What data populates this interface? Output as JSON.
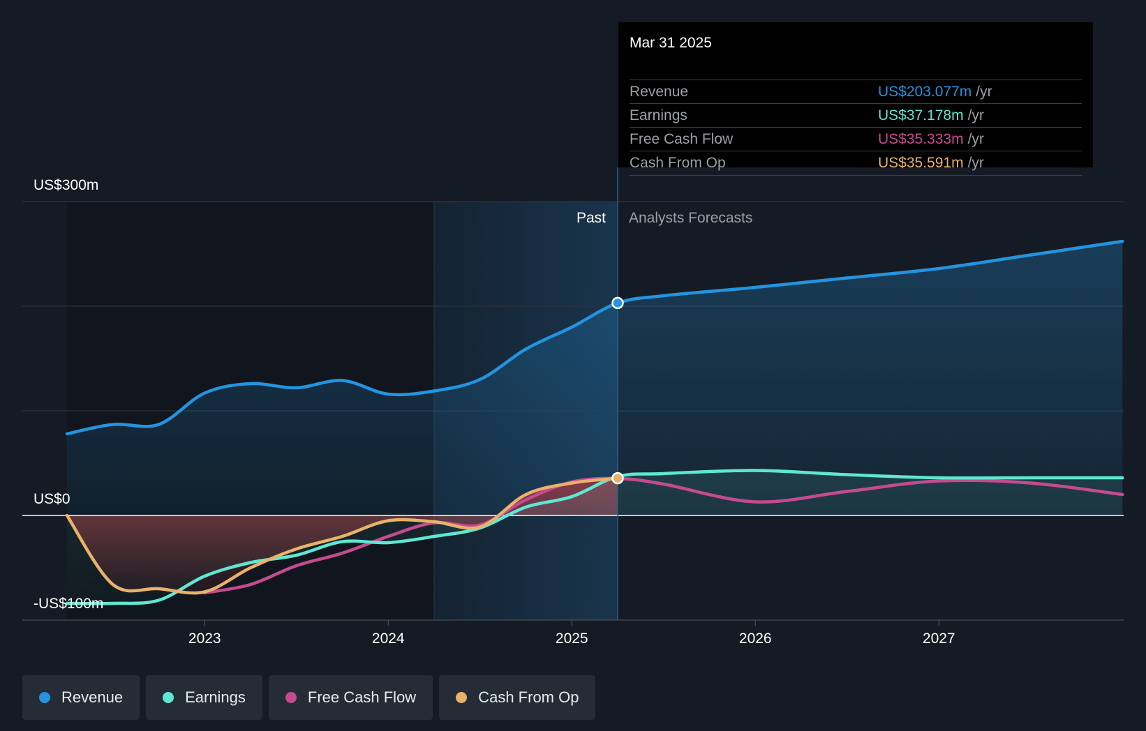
{
  "chart_data": {
    "type": "line",
    "ylim": [
      -100,
      300
    ],
    "y_tick_labels": [
      "US$300m",
      "US$0",
      "-US$100m"
    ],
    "x_ticks": [
      2023,
      2024,
      2025,
      2026,
      2027
    ],
    "x_tick_labels": [
      "2023",
      "2024",
      "2025",
      "2026",
      "2027"
    ],
    "xlim": [
      2022.25,
      2028.0
    ],
    "region_labels": {
      "past": "Past",
      "forecast": "Analysts Forecasts"
    },
    "forecast_start": 2025.25,
    "highlight_start": 2024.25,
    "colors": {
      "revenue": "#2394df",
      "earnings": "#5ee8d2",
      "free_cash_flow": "#c64a8f",
      "cash_from_op": "#e8b26a",
      "background": "#151b24"
    },
    "series": [
      {
        "name": "Revenue",
        "key": "revenue",
        "x": [
          2022.25,
          2022.5,
          2022.75,
          2023.0,
          2023.25,
          2023.5,
          2023.75,
          2024.0,
          2024.25,
          2024.5,
          2024.75,
          2025.0,
          2025.25,
          2025.5,
          2026.0,
          2026.5,
          2027.0,
          2027.5,
          2028.0
        ],
        "y": [
          78,
          87,
          87,
          117,
          126,
          122,
          129,
          116,
          119,
          130,
          159,
          180,
          203,
          210,
          218,
          227,
          236,
          249,
          262
        ]
      },
      {
        "name": "Earnings",
        "key": "earnings",
        "x": [
          2022.25,
          2022.5,
          2022.75,
          2023.0,
          2023.25,
          2023.5,
          2023.75,
          2024.0,
          2024.25,
          2024.5,
          2024.75,
          2025.0,
          2025.25,
          2025.5,
          2026.0,
          2026.5,
          2027.0,
          2027.5,
          2028.0
        ],
        "y": [
          -84,
          -84,
          -81,
          -58,
          -45,
          -38,
          -25,
          -26,
          -20,
          -12,
          8,
          18,
          37.178,
          40,
          43,
          39,
          36,
          36,
          36
        ]
      },
      {
        "name": "Free Cash Flow",
        "key": "free_cash_flow",
        "x": [
          2023.0,
          2023.25,
          2023.5,
          2023.75,
          2024.0,
          2024.25,
          2024.5,
          2024.75,
          2025.0,
          2025.25,
          2025.5,
          2026.0,
          2026.5,
          2027.0,
          2027.5,
          2028.0
        ],
        "y": [
          -74,
          -66,
          -48,
          -36,
          -20,
          -7,
          -9,
          15,
          32,
          35.333,
          30,
          13,
          23,
          33,
          31,
          20
        ]
      },
      {
        "name": "Cash From Op",
        "key": "cash_from_op",
        "x": [
          2022.25,
          2022.5,
          2022.75,
          2023.0,
          2023.25,
          2023.5,
          2023.75,
          2024.0,
          2024.25,
          2024.5,
          2024.75,
          2025.0,
          2025.25
        ],
        "y": [
          0,
          -66,
          -70,
          -73,
          -50,
          -32,
          -20,
          -5,
          -6,
          -11,
          20,
          31,
          35.591
        ]
      }
    ]
  },
  "tooltip": {
    "date": "Mar 31 2025",
    "rows": [
      {
        "label": "Revenue",
        "value": "US$203.077m",
        "unit": "/yr",
        "color": "#2394df"
      },
      {
        "label": "Earnings",
        "value": "US$37.178m",
        "unit": "/yr",
        "color": "#5ee8d2"
      },
      {
        "label": "Free Cash Flow",
        "value": "US$35.333m",
        "unit": "/yr",
        "color": "#c64a8f"
      },
      {
        "label": "Cash From Op",
        "value": "US$35.591m",
        "unit": "/yr",
        "color": "#e8b26a"
      }
    ]
  },
  "legend": [
    {
      "label": "Revenue",
      "color": "#2394df"
    },
    {
      "label": "Earnings",
      "color": "#5ee8d2"
    },
    {
      "label": "Free Cash Flow",
      "color": "#c64a8f"
    },
    {
      "label": "Cash From Op",
      "color": "#e8b26a"
    }
  ]
}
